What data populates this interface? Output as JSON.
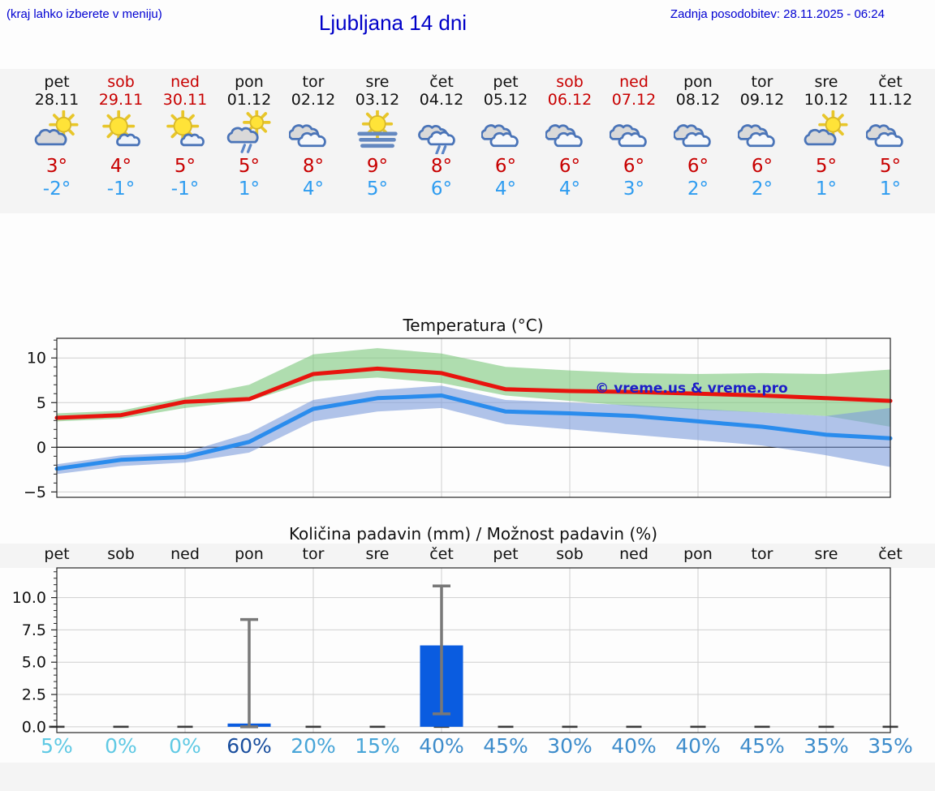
{
  "header": {
    "note": "(kraj lahko izberete v meniju)",
    "title": "Ljubljana 14 dni",
    "updated": "Zadnja posodobitev: 28.11.2025 - 06:24"
  },
  "colors": {
    "header_blue": "#0000d2",
    "weekend_red": "#c80000",
    "temp_high_red": "#c80000",
    "temp_low_blue": "#2e9cf0",
    "watermark_blue": "#1d1dc8",
    "bar_blue": "#0a5ce0",
    "whisker_gray": "#787878",
    "percent_low": "#5fc9e4",
    "percent_mid": "#48a5d8",
    "percent_high": "#3d8ccb",
    "percent_max": "#1b4f9e"
  },
  "days": [
    {
      "name": "pet",
      "date": "28.11",
      "weekend": false,
      "icon": "sun-behind-cloud",
      "hi": "3°",
      "lo": "-2°"
    },
    {
      "name": "sob",
      "date": "29.11",
      "weekend": true,
      "icon": "sunny-small-cloud",
      "hi": "4°",
      "lo": "-1°"
    },
    {
      "name": "ned",
      "date": "30.11",
      "weekend": true,
      "icon": "sunny-small-cloud",
      "hi": "5°",
      "lo": "-1°"
    },
    {
      "name": "pon",
      "date": "01.12",
      "weekend": false,
      "icon": "sun-rain",
      "hi": "5°",
      "lo": "1°"
    },
    {
      "name": "tor",
      "date": "02.12",
      "weekend": false,
      "icon": "cloudy",
      "hi": "8°",
      "lo": "4°"
    },
    {
      "name": "sre",
      "date": "03.12",
      "weekend": false,
      "icon": "fog",
      "hi": "9°",
      "lo": "5°"
    },
    {
      "name": "čet",
      "date": "04.12",
      "weekend": false,
      "icon": "rain",
      "hi": "8°",
      "lo": "6°"
    },
    {
      "name": "pet",
      "date": "05.12",
      "weekend": false,
      "icon": "cloudy",
      "hi": "6°",
      "lo": "4°"
    },
    {
      "name": "sob",
      "date": "06.12",
      "weekend": true,
      "icon": "cloudy",
      "hi": "6°",
      "lo": "4°"
    },
    {
      "name": "ned",
      "date": "07.12",
      "weekend": true,
      "icon": "cloudy",
      "hi": "6°",
      "lo": "3°"
    },
    {
      "name": "pon",
      "date": "08.12",
      "weekend": false,
      "icon": "cloudy",
      "hi": "6°",
      "lo": "2°"
    },
    {
      "name": "tor",
      "date": "09.12",
      "weekend": false,
      "icon": "cloudy",
      "hi": "6°",
      "lo": "2°"
    },
    {
      "name": "sre",
      "date": "10.12",
      "weekend": false,
      "icon": "sun-behind-cloud",
      "hi": "5°",
      "lo": "1°"
    },
    {
      "name": "čet",
      "date": "11.12",
      "weekend": false,
      "icon": "cloudy",
      "hi": "5°",
      "lo": "1°"
    }
  ],
  "chart_data": [
    {
      "type": "line",
      "title": "Temperatura (°C)",
      "x_categories": [
        "pet",
        "sob",
        "ned",
        "pon",
        "tor",
        "sre",
        "čet",
        "pet",
        "sob",
        "ned",
        "pon",
        "tor",
        "sre",
        "čet"
      ],
      "ylim": [
        -5.6,
        12.2
      ],
      "yticks": [
        {
          "v": -5,
          "label": "−5"
        },
        {
          "v": 0,
          "label": "0"
        },
        {
          "v": 5,
          "label": "5"
        },
        {
          "v": 10,
          "label": "10"
        }
      ],
      "grid": true,
      "legend": "none",
      "watermark": "© vreme.us & vreme.pro",
      "series": [
        {
          "name": "max temperature",
          "color": "#e8140e",
          "band_color": "#7cc87c",
          "values": [
            3.3,
            3.6,
            5.1,
            5.4,
            8.2,
            8.8,
            8.3,
            6.5,
            6.3,
            6.2,
            6.0,
            5.8,
            5.5,
            5.2
          ],
          "band_hi": [
            3.8,
            4.1,
            5.6,
            7.0,
            10.4,
            11.1,
            10.5,
            9.0,
            8.6,
            8.3,
            8.2,
            8.3,
            8.2,
            8.7
          ],
          "band_lo": [
            2.9,
            3.2,
            4.4,
            5.2,
            7.4,
            7.8,
            7.2,
            5.8,
            5.2,
            4.6,
            4.2,
            3.9,
            3.5,
            2.3
          ]
        },
        {
          "name": "min temperature",
          "color": "#2a8ced",
          "band_color": "#7d9cdc",
          "values": [
            -2.4,
            -1.4,
            -1.1,
            0.6,
            4.3,
            5.5,
            5.8,
            4.0,
            3.8,
            3.5,
            2.9,
            2.3,
            1.4,
            1.0
          ],
          "band_hi": [
            -1.9,
            -0.9,
            -0.6,
            1.6,
            5.3,
            6.4,
            6.9,
            5.3,
            5.0,
            4.7,
            4.3,
            3.9,
            3.5,
            4.4
          ],
          "band_lo": [
            -3.0,
            -2.1,
            -1.7,
            -0.6,
            2.9,
            4.0,
            4.4,
            2.6,
            2.0,
            1.4,
            0.8,
            0.2,
            -0.9,
            -2.2
          ]
        }
      ]
    },
    {
      "type": "bar",
      "title": "Količina padavin (mm) / Možnost padavin (%)",
      "x_categories": [
        "pet",
        "sob",
        "ned",
        "pon",
        "tor",
        "sre",
        "čet",
        "pet",
        "sob",
        "ned",
        "pon",
        "tor",
        "sre",
        "čet"
      ],
      "ylim": [
        -0.45,
        12.3
      ],
      "yticks": [
        {
          "v": 0,
          "label": "0.0"
        },
        {
          "v": 2.5,
          "label": "2.5"
        },
        {
          "v": 5,
          "label": "5.0"
        },
        {
          "v": 7.5,
          "label": "7.5"
        },
        {
          "v": 10,
          "label": "10.0"
        }
      ],
      "grid": true,
      "values": [
        0,
        0,
        0,
        0.25,
        0,
        0,
        6.3,
        0,
        0,
        0,
        0,
        0,
        0,
        0
      ],
      "whiskers": [
        null,
        null,
        null,
        [
          0,
          8.3
        ],
        null,
        null,
        [
          1.0,
          10.9
        ],
        null,
        null,
        null,
        null,
        null,
        null,
        null
      ],
      "percents": [
        5,
        0,
        0,
        60,
        20,
        15,
        40,
        45,
        30,
        40,
        40,
        45,
        35,
        35
      ]
    }
  ]
}
